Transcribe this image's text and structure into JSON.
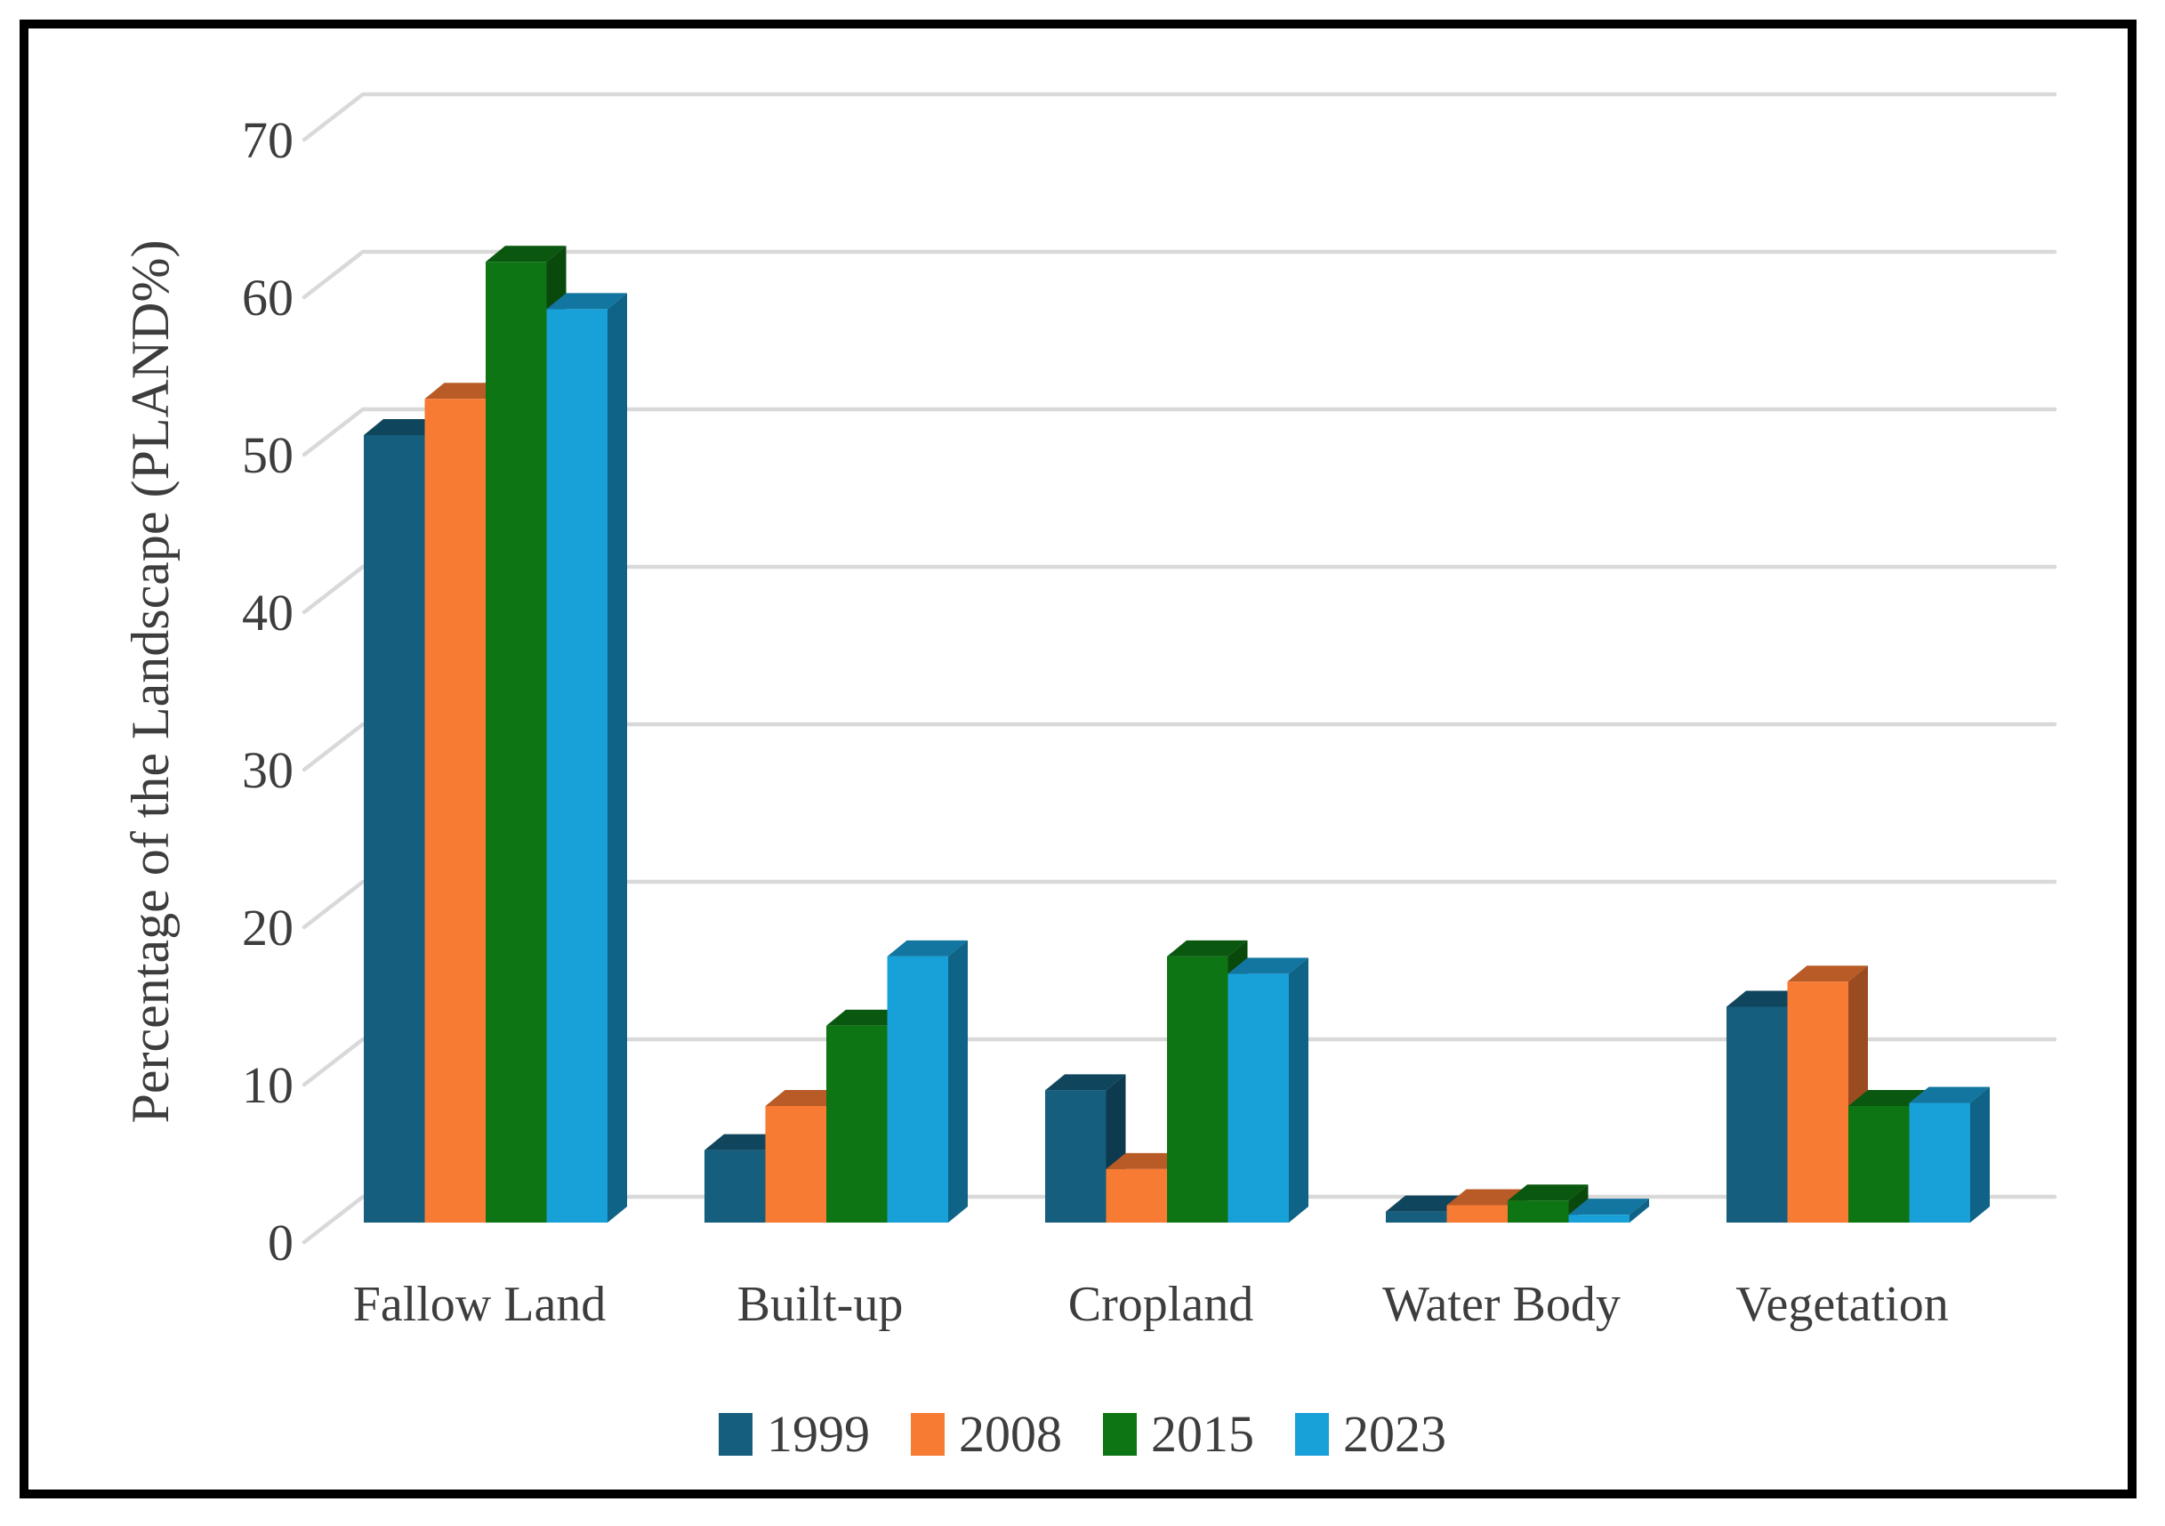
{
  "figure": {
    "border_color": "#000000",
    "background_color": "#ffffff",
    "gridline_color": "#d9d9d9",
    "text_color": "#3d3d3d"
  },
  "chart_data": {
    "type": "bar",
    "subtype": "3d-clustered-column",
    "title": "",
    "xlabel": "",
    "ylabel": "Percentage of the Landscape (PLAND%)",
    "categories": [
      "Fallow Land",
      "Built-up",
      "Cropland",
      "Water Body",
      "Vegetation"
    ],
    "series": [
      {
        "name": "1999",
        "color": "#155E7D",
        "values": [
          50.0,
          4.6,
          8.4,
          0.7,
          13.7
        ]
      },
      {
        "name": "2008",
        "color": "#F87B33",
        "values": [
          52.3,
          7.4,
          3.4,
          1.1,
          15.3
        ]
      },
      {
        "name": "2015",
        "color": "#0E7514",
        "values": [
          61.0,
          12.5,
          16.9,
          1.4,
          7.4
        ]
      },
      {
        "name": "2023",
        "color": "#18A0D8",
        "values": [
          58.0,
          16.9,
          15.8,
          0.5,
          7.6
        ]
      }
    ],
    "ylim": [
      0,
      70
    ],
    "ytick_step": 10,
    "ytick_labels": [
      "0",
      "10",
      "20",
      "30",
      "40",
      "50",
      "60",
      "70"
    ],
    "grid": true,
    "legend_position": "bottom"
  }
}
